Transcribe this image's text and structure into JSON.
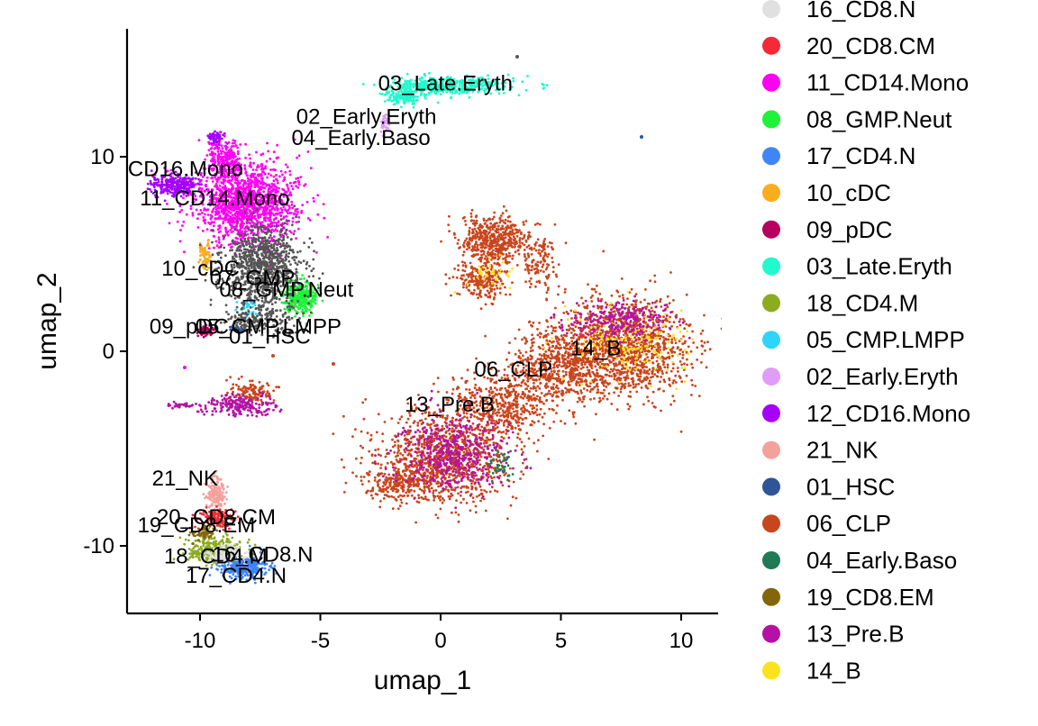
{
  "chart_data": {
    "type": "scatter",
    "xlabel": "umap_1",
    "ylabel": "umap_2",
    "xlim": [
      -13,
      11.5
    ],
    "ylim": [
      -13.5,
      16.5
    ],
    "xticks": [
      -10,
      -5,
      0,
      5,
      10
    ],
    "yticks": [
      -10,
      0,
      10
    ],
    "xtick_labels": [
      "-10",
      "-5",
      "0",
      "5",
      "10"
    ],
    "ytick_labels": [
      "-10",
      "0",
      "10"
    ],
    "grid": false,
    "legend_position": "right",
    "series": [
      {
        "name": "16_CD8.N",
        "color": "#e0e0e0"
      },
      {
        "name": "20_CD8.CM",
        "color": "#f42a37"
      },
      {
        "name": "11_CD14.Mono",
        "color": "#ff00f2"
      },
      {
        "name": "08_GMP.Neut",
        "color": "#1ff23a"
      },
      {
        "name": "17_CD4.N",
        "color": "#3f85f4"
      },
      {
        "name": "10_cDC",
        "color": "#fbac1f"
      },
      {
        "name": "09_pDC",
        "color": "#b5005f"
      },
      {
        "name": "03_Late.Eryth",
        "color": "#1ffbcc"
      },
      {
        "name": "18_CD4.M",
        "color": "#8dab1f"
      },
      {
        "name": "05_CMP.LMPP",
        "color": "#2fd5f9"
      },
      {
        "name": "02_Early.Eryth",
        "color": "#e09cf7"
      },
      {
        "name": "12_CD16.Mono",
        "color": "#a400fb"
      },
      {
        "name": "21_NK",
        "color": "#f5a09c"
      },
      {
        "name": "01_HSC",
        "color": "#2f5597"
      },
      {
        "name": "06_CLP",
        "color": "#c9451d"
      },
      {
        "name": "04_Early.Baso",
        "color": "#1f7b55"
      },
      {
        "name": "19_CD8.EM",
        "color": "#836609"
      },
      {
        "name": "13_Pre.B",
        "color": "#b511a6"
      },
      {
        "name": "14_B",
        "color": "#fbe21f"
      }
    ],
    "cluster_labels": [
      {
        "text": "03_Late.Eryth",
        "x": -2.6,
        "y": 13.4
      },
      {
        "text": "02_Early.Eryth",
        "x": -6.0,
        "y": 11.7
      },
      {
        "text": "04_Early.Baso",
        "x": -6.2,
        "y": 10.6
      },
      {
        "text": "CD16.Mono",
        "x": -13.0,
        "y": 9.0
      },
      {
        "text": "11_CD14.Mono",
        "x": -12.5,
        "y": 7.5
      },
      {
        "text": "10_cDC",
        "x": -11.6,
        "y": 3.9
      },
      {
        "text": "07_GMP",
        "x": -9.6,
        "y": 3.4
      },
      {
        "text": "08_GMP.Neut",
        "x": -9.2,
        "y": 2.8
      },
      {
        "text": "09_pDC",
        "x": -12.1,
        "y": 0.9
      },
      {
        "text": "05_CMP.LMPP",
        "x": -10.2,
        "y": 0.9
      },
      {
        "text": "01_HSC",
        "x": -8.8,
        "y": 0.4
      },
      {
        "text": "14_B",
        "x": 5.4,
        "y": -0.2
      },
      {
        "text": "06_CLP",
        "x": 1.4,
        "y": -1.3
      },
      {
        "text": "13_Pre.B",
        "x": -1.5,
        "y": -3.1
      },
      {
        "text": "21_NK",
        "x": -12.0,
        "y": -6.9
      },
      {
        "text": "20_CD8.CM",
        "x": -11.8,
        "y": -8.9
      },
      {
        "text": "19_CD8.EM",
        "x": -12.6,
        "y": -9.3
      },
      {
        "text": "18_CD4.M",
        "x": -11.5,
        "y": -10.9
      },
      {
        "text": "16_CD8.N",
        "x": -9.5,
        "y": -10.8
      },
      {
        "text": "17_CD4.N",
        "x": -10.6,
        "y": -11.9
      }
    ]
  }
}
